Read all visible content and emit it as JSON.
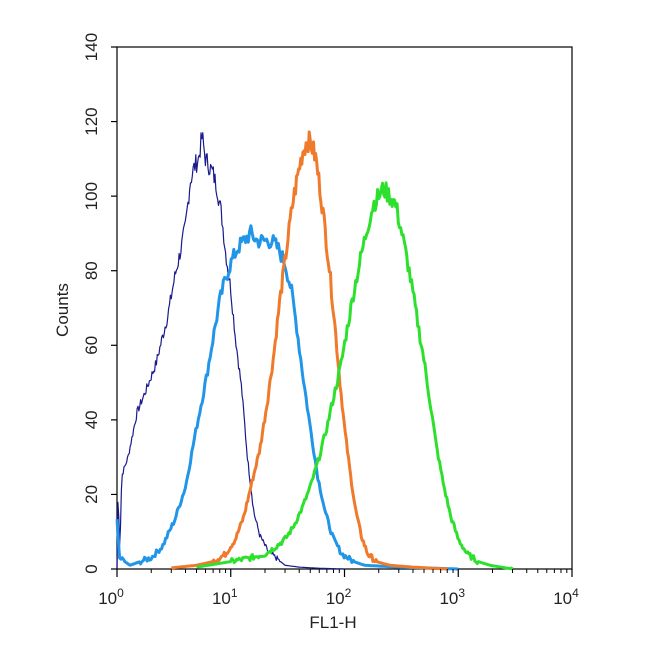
{
  "chart_data": {
    "type": "line",
    "title": "",
    "xlabel": "FL1-H",
    "ylabel": "Counts",
    "xscale": "log",
    "xlim": [
      1,
      10000
    ],
    "ylim": [
      0,
      140
    ],
    "x_ticks": [
      {
        "value": 1,
        "base": "10",
        "exp": "0"
      },
      {
        "value": 10,
        "base": "10",
        "exp": "1"
      },
      {
        "value": 100,
        "base": "10",
        "exp": "2"
      },
      {
        "value": 1000,
        "base": "10",
        "exp": "3"
      },
      {
        "value": 10000,
        "base": "10",
        "exp": "4"
      }
    ],
    "y_ticks": [
      "0",
      "20",
      "40",
      "60",
      "80",
      "100",
      "120",
      "140"
    ],
    "grid": false,
    "legend": "none",
    "series": [
      {
        "color": "#1a1a8c",
        "stroke": "thin",
        "points": [
          [
            1.0,
            0
          ],
          [
            1.02,
            20
          ],
          [
            1.06,
            5
          ],
          [
            1.1,
            25
          ],
          [
            1.25,
            30
          ],
          [
            1.5,
            42
          ],
          [
            1.8,
            48
          ],
          [
            2.2,
            55
          ],
          [
            2.5,
            62
          ],
          [
            2.8,
            68
          ],
          [
            3.2,
            78
          ],
          [
            3.6,
            85
          ],
          [
            4.0,
            92
          ],
          [
            4.4,
            104
          ],
          [
            4.8,
            108
          ],
          [
            5.2,
            110
          ],
          [
            5.6,
            116
          ],
          [
            6.0,
            110
          ],
          [
            6.5,
            108
          ],
          [
            7.0,
            106
          ],
          [
            7.6,
            102
          ],
          [
            8.3,
            95
          ],
          [
            9.0,
            85
          ],
          [
            10,
            75
          ],
          [
            11,
            62
          ],
          [
            12.5,
            48
          ],
          [
            14,
            30
          ],
          [
            16,
            15
          ],
          [
            18,
            9
          ],
          [
            21,
            5
          ],
          [
            25,
            3
          ],
          [
            30,
            1
          ],
          [
            40,
            0.5
          ],
          [
            60,
            0.2
          ],
          [
            100,
            0
          ]
        ]
      },
      {
        "color": "#2196e8",
        "stroke": "thick",
        "points": [
          [
            1.0,
            13
          ],
          [
            1.05,
            3
          ],
          [
            1.3,
            1
          ],
          [
            1.6,
            2
          ],
          [
            2.0,
            3
          ],
          [
            2.5,
            6
          ],
          [
            3.2,
            13
          ],
          [
            4.0,
            22
          ],
          [
            5.0,
            38
          ],
          [
            6.0,
            50
          ],
          [
            7.0,
            62
          ],
          [
            8.0,
            72
          ],
          [
            9.0,
            78
          ],
          [
            10,
            82
          ],
          [
            11.5,
            86
          ],
          [
            13,
            88
          ],
          [
            15,
            90
          ],
          [
            17,
            88
          ],
          [
            20,
            88
          ],
          [
            23,
            88
          ],
          [
            26,
            86
          ],
          [
            30,
            82
          ],
          [
            34,
            75
          ],
          [
            38,
            65
          ],
          [
            43,
            52
          ],
          [
            50,
            38
          ],
          [
            58,
            25
          ],
          [
            68,
            15
          ],
          [
            80,
            8
          ],
          [
            95,
            4
          ],
          [
            120,
            2
          ],
          [
            150,
            1
          ],
          [
            300,
            0.5
          ],
          [
            1000,
            0
          ]
        ]
      },
      {
        "color": "#f07a2b",
        "stroke": "thick",
        "points": [
          [
            3.0,
            0.3
          ],
          [
            5,
            1
          ],
          [
            7,
            2
          ],
          [
            9,
            4
          ],
          [
            11,
            8
          ],
          [
            13,
            14
          ],
          [
            15,
            22
          ],
          [
            18,
            32
          ],
          [
            21,
            45
          ],
          [
            24,
            58
          ],
          [
            27,
            72
          ],
          [
            31,
            86
          ],
          [
            35,
            98
          ],
          [
            39,
            106
          ],
          [
            43,
            112
          ],
          [
            47,
            115
          ],
          [
            51,
            114
          ],
          [
            56,
            110
          ],
          [
            61,
            102
          ],
          [
            67,
            92
          ],
          [
            74,
            80
          ],
          [
            82,
            66
          ],
          [
            90,
            52
          ],
          [
            100,
            38
          ],
          [
            112,
            26
          ],
          [
            125,
            16
          ],
          [
            140,
            9
          ],
          [
            160,
            4
          ],
          [
            190,
            2
          ],
          [
            250,
            1
          ],
          [
            400,
            0.5
          ],
          [
            800,
            0
          ]
        ]
      },
      {
        "color": "#2ee02e",
        "stroke": "thick",
        "points": [
          [
            5,
            0.5
          ],
          [
            10,
            2
          ],
          [
            15,
            3
          ],
          [
            20,
            4
          ],
          [
            25,
            6
          ],
          [
            30,
            8
          ],
          [
            35,
            11
          ],
          [
            42,
            16
          ],
          [
            50,
            22
          ],
          [
            60,
            30
          ],
          [
            70,
            38
          ],
          [
            80,
            46
          ],
          [
            92,
            54
          ],
          [
            105,
            64
          ],
          [
            120,
            74
          ],
          [
            140,
            84
          ],
          [
            160,
            92
          ],
          [
            180,
            98
          ],
          [
            200,
            100
          ],
          [
            220,
            102
          ],
          [
            250,
            100
          ],
          [
            280,
            98
          ],
          [
            320,
            90
          ],
          [
            370,
            80
          ],
          [
            430,
            68
          ],
          [
            500,
            56
          ],
          [
            570,
            44
          ],
          [
            650,
            32
          ],
          [
            750,
            22
          ],
          [
            860,
            14
          ],
          [
            1000,
            8
          ],
          [
            1200,
            4
          ],
          [
            1500,
            2
          ],
          [
            1900,
            1
          ],
          [
            3000,
            0
          ]
        ]
      }
    ]
  }
}
